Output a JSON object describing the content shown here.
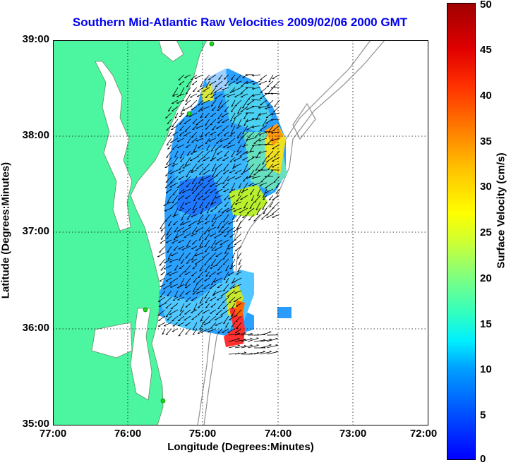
{
  "title": "Southern Mid-Atlantic Raw Velocities 2009/02/06 2000 GMT",
  "x_axis": {
    "label": "Longitude (Degrees:Minutes)",
    "ticks": [
      "77:00",
      "76:00",
      "75:00",
      "74:00",
      "73:00",
      "72:00"
    ]
  },
  "y_axis": {
    "label": "Latitude (Degrees:Minutes)",
    "ticks": [
      "39:00",
      "38:00",
      "37:00",
      "36:00",
      "35:00"
    ]
  },
  "colorbar": {
    "label": "Surface Velocity (cm/s)",
    "ticks": [
      "50",
      "45",
      "40",
      "35",
      "30",
      "25",
      "20",
      "15",
      "10",
      "5",
      "0"
    ],
    "min": 0,
    "max": 50
  },
  "colors": {
    "land": "#4cf5a0",
    "bathymetry": "#909090",
    "station": "#1dd81d",
    "arrow": "#000000",
    "title": "#0000ee"
  },
  "chart_data": {
    "type": "heatmap",
    "lon_range": [
      "77:00",
      "72:00"
    ],
    "lat_range": [
      "35:00",
      "39:00"
    ],
    "value_range": [
      0,
      50
    ],
    "units": "cm/s",
    "grid": true,
    "observed_max_area": "near 35:52N 74:30W, ~45 cm/s",
    "secondary_max_area": "near 37:58N 74:00W, ~38 cm/s",
    "typical_values": "5-15 cm/s across most of the coverage area"
  }
}
